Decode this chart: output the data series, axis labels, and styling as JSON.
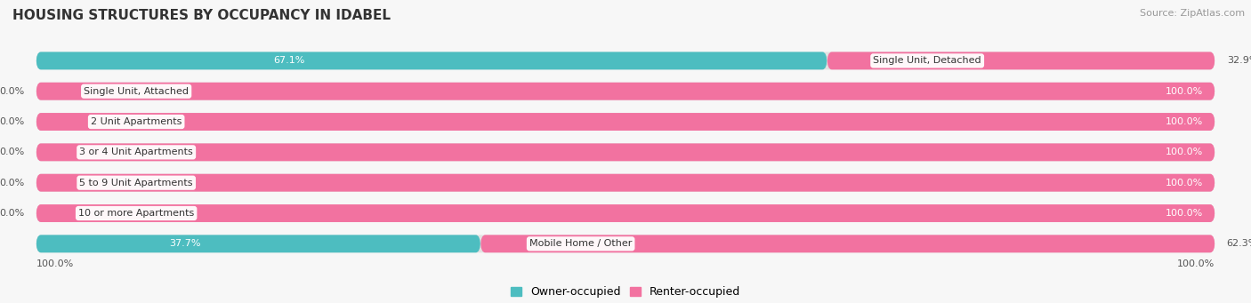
{
  "title": "HOUSING STRUCTURES BY OCCUPANCY IN IDABEL",
  "source": "Source: ZipAtlas.com",
  "categories": [
    "Single Unit, Detached",
    "Single Unit, Attached",
    "2 Unit Apartments",
    "3 or 4 Unit Apartments",
    "5 to 9 Unit Apartments",
    "10 or more Apartments",
    "Mobile Home / Other"
  ],
  "owner_pct": [
    67.1,
    0.0,
    0.0,
    0.0,
    0.0,
    0.0,
    37.7
  ],
  "renter_pct": [
    32.9,
    100.0,
    100.0,
    100.0,
    100.0,
    100.0,
    62.3
  ],
  "owner_color": "#4dbdc0",
  "renter_color": "#f272a0",
  "owner_label": "Owner-occupied",
  "renter_label": "Renter-occupied",
  "bg_color": "#f7f7f7",
  "bar_bg_color": "#e2e2e2",
  "title_fontsize": 11,
  "source_fontsize": 8,
  "label_fontsize": 8,
  "value_fontsize": 8,
  "legend_fontsize": 9
}
